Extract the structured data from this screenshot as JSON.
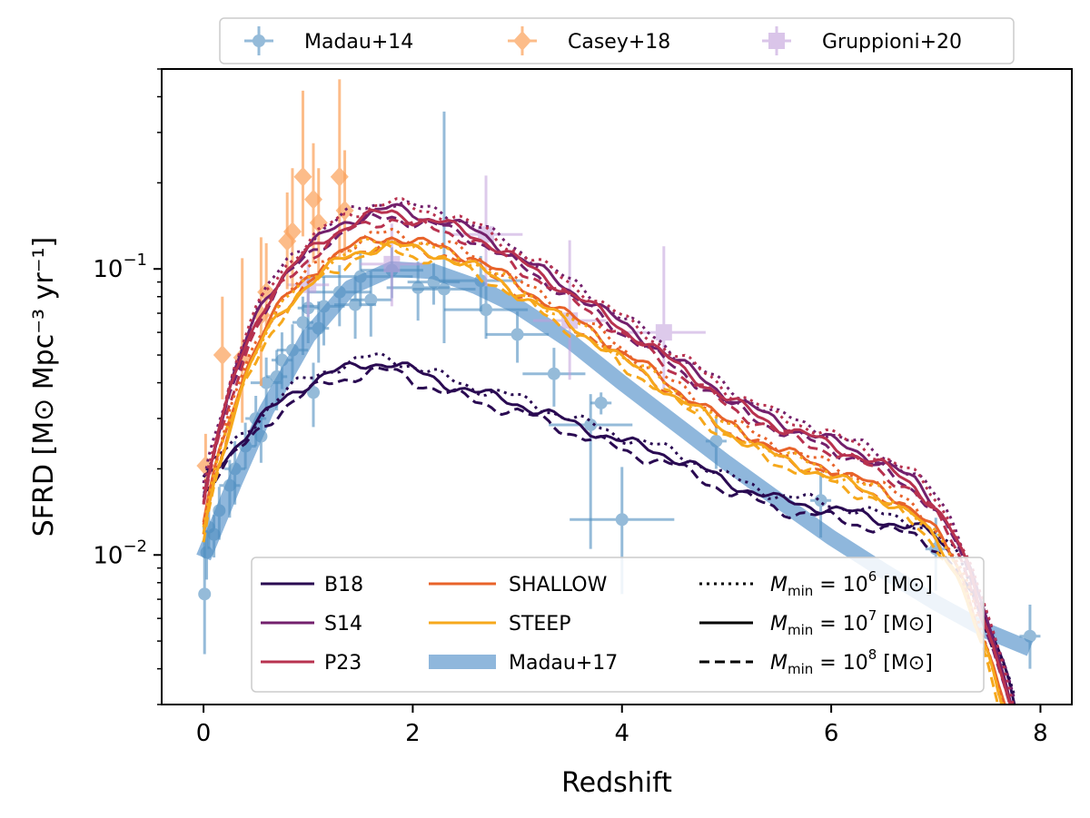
{
  "chart_data": {
    "type": "line",
    "xlabel": "Redshift",
    "ylabel": "SFRD [M⊙ Mpc⁻³ yr⁻¹]",
    "xlim": [
      -0.4,
      8.3
    ],
    "ylim": [
      0.003,
      0.5
    ],
    "yscale": "log",
    "x_ticks": [
      0,
      2,
      4,
      6,
      8
    ],
    "x_tick_labels": [
      "0",
      "2",
      "4",
      "6",
      "8"
    ],
    "y_major_ticks": [
      0.01,
      0.1
    ],
    "y_tick_labels": [
      {
        "base": "10",
        "exp": "−2"
      },
      {
        "base": "10",
        "exp": "−1"
      }
    ],
    "colors": {
      "B18": "#2a0a52",
      "S14": "#73206c",
      "P23": "#b8324f",
      "SHALLOW": "#e8632a",
      "STEEP": "#f6a81c",
      "madau17": "#8fb7dc",
      "madau14": "#4f8fc0",
      "casey18": "#fba35d",
      "gruppioni20": "#c29fdc"
    },
    "madau17_x": [
      0,
      0.3,
      0.6,
      1.0,
      1.4,
      1.8,
      2.2,
      2.6,
      3.0,
      3.5,
      4.0,
      4.5,
      5.0,
      5.5,
      6.0,
      6.5,
      7.0,
      7.5,
      7.9
    ],
    "madau17_y": [
      0.0098,
      0.018,
      0.032,
      0.058,
      0.086,
      0.1,
      0.098,
      0.087,
      0.074,
      0.056,
      0.04,
      0.029,
      0.021,
      0.0155,
      0.0115,
      0.0088,
      0.0068,
      0.0054,
      0.0047
    ],
    "base_curve_x": [
      0,
      0.2,
      0.4,
      0.6,
      0.8,
      1.0,
      1.2,
      1.4,
      1.6,
      1.8,
      2.0,
      2.3,
      2.6,
      3.0,
      3.5,
      4.0,
      4.5,
      5.0,
      5.5,
      6.0,
      6.5,
      6.8,
      7.0,
      7.2,
      7.4,
      7.6,
      7.7,
      7.75
    ],
    "base_curve_y": [
      0.016,
      0.032,
      0.055,
      0.079,
      0.1,
      0.118,
      0.135,
      0.148,
      0.158,
      0.163,
      0.155,
      0.148,
      0.135,
      0.11,
      0.085,
      0.064,
      0.048,
      0.036,
      0.029,
      0.025,
      0.021,
      0.018,
      0.015,
      0.0115,
      0.0072,
      0.0043,
      0.0033,
      0.0029
    ],
    "b18_x": [
      0,
      0.2,
      0.4,
      0.6,
      0.8,
      1.0,
      1.2,
      1.4,
      1.6,
      1.8,
      2.0,
      2.3,
      2.6,
      3.0,
      3.5,
      4.0,
      4.5,
      5.0,
      5.5,
      6.0,
      6.5,
      6.8,
      7.0,
      7.2,
      7.4,
      7.6,
      7.7,
      7.75
    ],
    "b18_y": [
      0.018,
      0.022,
      0.026,
      0.031,
      0.036,
      0.04,
      0.043,
      0.045,
      0.047,
      0.047,
      0.044,
      0.04,
      0.037,
      0.034,
      0.029,
      0.025,
      0.022,
      0.018,
      0.0155,
      0.0145,
      0.0132,
      0.0125,
      0.0115,
      0.0095,
      0.0068,
      0.0045,
      0.0035,
      0.003
    ],
    "series": [
      {
        "name": "B18",
        "mode": "b18",
        "factors": [
          1.04,
          1.0,
          0.93
        ]
      },
      {
        "name": "S14",
        "mode": "base",
        "factors": [
          1.06,
          1.0,
          0.94
        ]
      },
      {
        "name": "P23",
        "mode": "base",
        "factors": [
          1.05,
          0.97,
          0.92
        ]
      },
      {
        "name": "SHALLOW",
        "mode": "base",
        "factors": [
          0.82,
          0.8,
          0.76
        ]
      },
      {
        "name": "STEEP",
        "mode": "base",
        "factors": [
          0.78,
          0.75,
          0.72
        ]
      }
    ],
    "madau14_points": [
      [
        0.01,
        0.0073,
        0.01,
        0.0028,
        0.004
      ],
      [
        0.03,
        0.0102,
        0.02,
        0.002,
        0.002
      ],
      [
        0.05,
        0.0125,
        0.05,
        0.002,
        0.002
      ],
      [
        0.1,
        0.0118,
        0.05,
        0.002,
        0.002
      ],
      [
        0.15,
        0.0143,
        0.05,
        0.003,
        0.003
      ],
      [
        0.25,
        0.0175,
        0.1,
        0.004,
        0.004
      ],
      [
        0.3,
        0.02,
        0.1,
        0.005,
        0.005
      ],
      [
        0.4,
        0.024,
        0.1,
        0.004,
        0.005
      ],
      [
        0.5,
        0.03,
        0.1,
        0.006,
        0.006
      ],
      [
        0.55,
        0.026,
        0.05,
        0.005,
        0.005
      ],
      [
        0.6,
        0.04,
        0.15,
        0.008,
        0.009
      ],
      [
        0.7,
        0.042,
        0.1,
        0.01,
        0.01
      ],
      [
        0.75,
        0.048,
        0.1,
        0.01,
        0.012
      ],
      [
        0.85,
        0.052,
        0.15,
        0.012,
        0.012
      ],
      [
        0.95,
        0.065,
        0.1,
        0.015,
        0.015
      ],
      [
        1.0,
        0.073,
        0.1,
        0.018,
        0.02
      ],
      [
        1.05,
        0.037,
        0.05,
        0.009,
        0.01
      ],
      [
        1.1,
        0.062,
        0.1,
        0.015,
        0.015
      ],
      [
        1.15,
        0.074,
        0.2,
        0.02,
        0.02
      ],
      [
        1.3,
        0.083,
        0.3,
        0.02,
        0.02
      ],
      [
        1.45,
        0.075,
        0.2,
        0.018,
        0.02
      ],
      [
        1.5,
        0.094,
        0.5,
        0.02,
        0.02
      ],
      [
        1.6,
        0.078,
        0.2,
        0.02,
        0.02
      ],
      [
        1.8,
        0.099,
        0.3,
        0.02,
        0.02
      ],
      [
        2.05,
        0.086,
        0.3,
        0.02,
        0.02
      ],
      [
        2.2,
        0.09,
        0.25,
        0.015,
        0.015
      ],
      [
        2.3,
        0.085,
        0.3,
        0.03,
        0.27
      ],
      [
        2.65,
        0.091,
        0.4,
        0.02,
        0.02
      ],
      [
        2.7,
        0.072,
        0.4,
        0.015,
        0.015
      ],
      [
        3.0,
        0.059,
        0.3,
        0.012,
        0.012
      ],
      [
        3.35,
        0.043,
        0.3,
        0.01,
        0.01
      ],
      [
        3.7,
        0.0285,
        0.4,
        0.018,
        0.008
      ],
      [
        3.8,
        0.034,
        0.1,
        0.003,
        0.003
      ],
      [
        4.0,
        0.0133,
        0.5,
        0.006,
        0.007
      ],
      [
        4.9,
        0.025,
        0.1,
        0.005,
        0.005
      ],
      [
        5.9,
        0.0155,
        0.1,
        0.004,
        0.004
      ],
      [
        7.0,
        0.0105,
        0.1,
        0.003,
        0.003
      ],
      [
        7.9,
        0.0052,
        0.1,
        0.0012,
        0.0015
      ]
    ],
    "casey18_points": [
      [
        0.02,
        0.0205,
        0.004,
        0.006
      ],
      [
        0.18,
        0.05,
        0.015,
        0.03
      ],
      [
        0.37,
        0.049,
        0.02,
        0.06
      ],
      [
        0.55,
        0.069,
        0.03,
        0.06
      ],
      [
        0.6,
        0.083,
        0.02,
        0.04
      ],
      [
        0.8,
        0.125,
        0.04,
        0.06
      ],
      [
        0.85,
        0.135,
        0.05,
        0.09
      ],
      [
        0.95,
        0.21,
        0.08,
        0.21
      ],
      [
        1.05,
        0.175,
        0.07,
        0.1
      ],
      [
        1.1,
        0.145,
        0.05,
        0.08
      ],
      [
        1.3,
        0.21,
        0.1,
        0.25
      ],
      [
        1.35,
        0.16,
        0.05,
        0.1
      ]
    ],
    "gruppioni20_points": [
      [
        1.0,
        0.088,
        0.2,
        0.02,
        0.02
      ],
      [
        1.8,
        0.104,
        0.3,
        0.03,
        0.04
      ],
      [
        2.7,
        0.132,
        0.35,
        0.045,
        0.08
      ],
      [
        3.5,
        0.066,
        0.35,
        0.025,
        0.06
      ],
      [
        4.4,
        0.06,
        0.4,
        0.023,
        0.06
      ]
    ],
    "legend_top": {
      "position": "top-center",
      "entries": [
        {
          "label": "Madau+14",
          "marker": "circle",
          "color_key": "madau14"
        },
        {
          "label": "Casey+18",
          "marker": "diamond",
          "color_key": "casey18"
        },
        {
          "label": "Gruppioni+20",
          "marker": "square",
          "color_key": "gruppioni20"
        }
      ]
    },
    "legend_inner": {
      "position": "lower-center",
      "columns": [
        [
          {
            "label": "B18",
            "style": "solid",
            "color_key": "B18"
          },
          {
            "label": "S14",
            "style": "solid",
            "color_key": "S14"
          },
          {
            "label": "P23",
            "style": "solid",
            "color_key": "P23"
          }
        ],
        [
          {
            "label": "SHALLOW",
            "style": "solid",
            "color_key": "SHALLOW"
          },
          {
            "label": "STEEP",
            "style": "solid",
            "color_key": "STEEP"
          },
          {
            "label": "Madau+17",
            "style": "thick",
            "color_key": "madau17"
          }
        ]
      ],
      "mmin_entries": [
        {
          "style": "dotted",
          "exp": "6"
        },
        {
          "style": "solid",
          "exp": "7"
        },
        {
          "style": "dashed",
          "exp": "8"
        }
      ],
      "mmin_text": {
        "prefix": "M",
        "sub": "min",
        "eq": " = 10",
        "unit": " [M⊙]"
      }
    }
  }
}
